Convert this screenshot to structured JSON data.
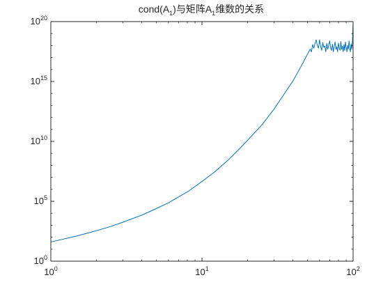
{
  "chart_data": {
    "type": "line",
    "title": {
      "prefix": "cond(A",
      "sub1": "1",
      "middle": ")与矩阵A",
      "sub2": "1",
      "suffix": "维数的关系"
    },
    "xlabel": "",
    "ylabel": "",
    "x_scale": "log",
    "y_scale": "log",
    "xlim": [
      1,
      100
    ],
    "ylim": [
      1,
      1e+20
    ],
    "x_ticks": [
      {
        "base": "10",
        "exp": "0",
        "value": 1
      },
      {
        "base": "10",
        "exp": "1",
        "value": 10
      },
      {
        "base": "10",
        "exp": "2",
        "value": 100
      }
    ],
    "y_ticks": [
      {
        "base": "10",
        "exp": "0",
        "value": 1
      },
      {
        "base": "10",
        "exp": "5",
        "value": 100000
      },
      {
        "base": "10",
        "exp": "10",
        "value": 10000000000
      },
      {
        "base": "10",
        "exp": "15",
        "value": 1000000000000000.0
      },
      {
        "base": "10",
        "exp": "20",
        "value": 1e+20
      }
    ],
    "grid": false,
    "legend": "none",
    "line_color": "#0072BD",
    "axis_color": "#262626",
    "series": [
      {
        "x": [
          1,
          1.5,
          2,
          2.5,
          3,
          4,
          5,
          6,
          8,
          10,
          12,
          15,
          18,
          20,
          25,
          30,
          35,
          40,
          45,
          50,
          52,
          53,
          54,
          55,
          56,
          57,
          58,
          59,
          60,
          61,
          62,
          63,
          64,
          65,
          66,
          67,
          68,
          69,
          70,
          71,
          72,
          73,
          74,
          75,
          76,
          77,
          78,
          79,
          80,
          81,
          82,
          83,
          84,
          85,
          86,
          87,
          88,
          89,
          90,
          91,
          92,
          93,
          94,
          95,
          96,
          97,
          98,
          99,
          100
        ],
        "y": [
          40.0,
          130.0,
          350.0,
          800.0,
          1800.0,
          7000.0,
          25000.0,
          75000.0,
          600000.0,
          4500000.0,
          25000000.0,
          300000000.0,
          3000000000.0,
          12000000000.0,
          250000000000.0,
          5000000000000.0,
          90000000000000.0,
          1100000000000000.0,
          1.6e+16,
          2e+17,
          5e+17,
          3e+17,
          1.2e+18,
          6e+17,
          1.5e+18,
          3e+18,
          1e+18,
          6e+17,
          3e+18,
          8e+17,
          4e+17,
          1.8e+18,
          7e+17,
          9e+17,
          3e+17,
          1.5e+18,
          5e+17,
          1.1e+18,
          2.5e+18,
          6e+17,
          4e+17,
          1.3e+18,
          3e+17,
          9e+17,
          2e+18,
          5e+17,
          8e+17,
          3e+17,
          1.6e+18,
          6e+17,
          4e+17,
          2.2e+18,
          5e+17,
          9e+17,
          3e+17,
          1.2e+18,
          4e+17,
          2e+18,
          7e+17,
          3e+17,
          1e+18,
          5e+17,
          2.5e+18,
          6e+17,
          3e+17,
          1.4e+18,
          5e+17,
          2e+18,
          8e+19
        ]
      }
    ]
  }
}
